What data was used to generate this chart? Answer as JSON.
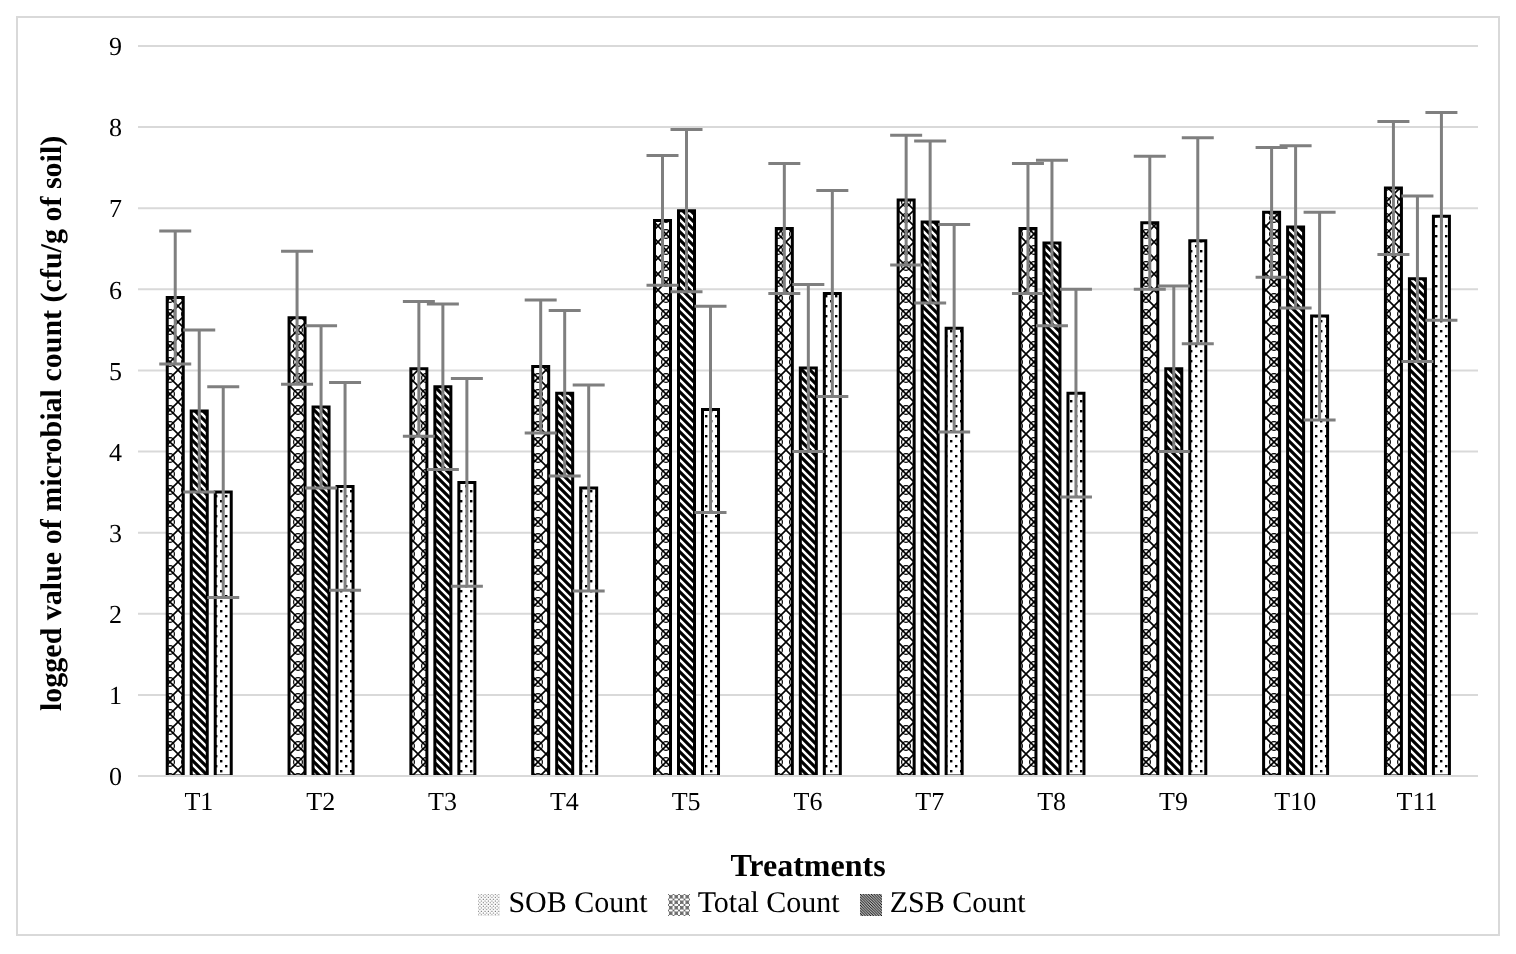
{
  "chart_data": {
    "type": "bar",
    "xlabel": "Treatments",
    "ylabel": "logged value of microbial count (cfu/g of soil)",
    "categories": [
      "T1",
      "T2",
      "T3",
      "T4",
      "T5",
      "T6",
      "T7",
      "T8",
      "T9",
      "T10",
      "T11"
    ],
    "series": [
      {
        "name": "Total Count",
        "color": "#000000",
        "values": [
          5.9,
          5.65,
          5.02,
          5.05,
          6.85,
          6.75,
          7.1,
          6.75,
          6.82,
          6.95,
          7.25
        ],
        "errors": [
          0.82,
          0.82,
          0.83,
          0.82,
          0.8,
          0.8,
          0.8,
          0.8,
          0.82,
          0.8,
          0.82
        ]
      },
      {
        "name": "ZSB Count",
        "color": "#000000",
        "values": [
          4.5,
          4.55,
          4.8,
          4.72,
          6.97,
          5.03,
          6.83,
          6.57,
          5.02,
          6.77,
          6.13
        ],
        "errors": [
          1.0,
          1.0,
          1.02,
          1.02,
          1.0,
          1.03,
          1.0,
          1.02,
          1.02,
          1.0,
          1.02
        ]
      },
      {
        "name": "SOB Count",
        "color": "#000000",
        "values": [
          3.5,
          3.57,
          3.62,
          3.55,
          4.52,
          5.95,
          5.52,
          4.72,
          6.6,
          5.67,
          6.9
        ],
        "errors": [
          1.3,
          1.28,
          1.28,
          1.27,
          1.27,
          1.27,
          1.28,
          1.28,
          1.27,
          1.28,
          1.28
        ]
      }
    ],
    "ylim": [
      0,
      9
    ],
    "yticks": [
      0,
      1,
      2,
      3,
      4,
      5,
      6,
      7,
      8,
      9
    ],
    "grid": "y",
    "legend": "bottom"
  }
}
